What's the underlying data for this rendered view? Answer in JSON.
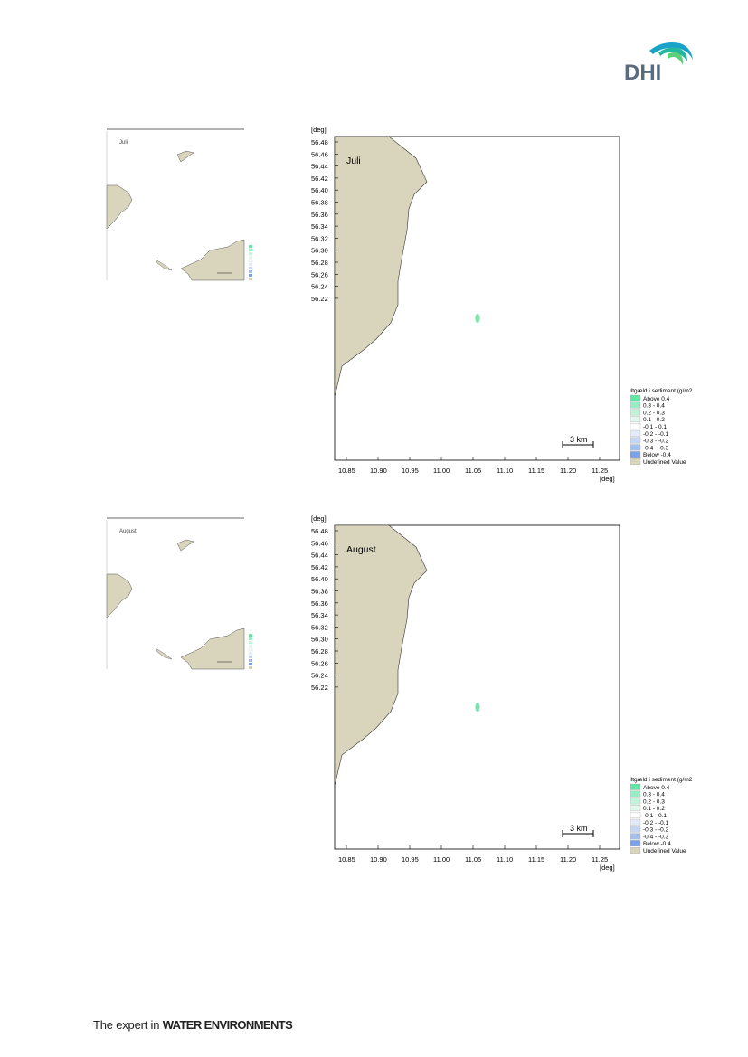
{
  "brand": {
    "logo_text": "DHI",
    "tagline_prefix": "The expert in ",
    "tagline_bold": "WATER ENVIRONMENTS"
  },
  "colors": {
    "land": "#d9d5bd",
    "water": "#ffffff",
    "spot": "#7fe0b0",
    "frame": "#000000"
  },
  "axis": {
    "unit": "[deg]",
    "y_ticks": [
      "56.48",
      "56.46",
      "56.44",
      "56.42",
      "56.40",
      "56.38",
      "56.36",
      "56.34",
      "56.32",
      "56.30",
      "56.28",
      "56.26",
      "56.24",
      "56.22"
    ],
    "x_ticks": [
      "10.85",
      "10.90",
      "10.95",
      "11.00",
      "11.05",
      "11.10",
      "11.15",
      "11.20",
      "11.25"
    ]
  },
  "scale_bar": "3 km",
  "legend": {
    "title": "Iltgæld i sediment (g/m2",
    "items": [
      {
        "label": "Above  0.4",
        "color": "#66e6a6"
      },
      {
        "label": "0.3 -  0.4",
        "color": "#99edc2"
      },
      {
        "label": "0.2 -  0.3",
        "color": "#c2f4d9"
      },
      {
        "label": "0.1 -  0.2",
        "color": "#e2f8ec"
      },
      {
        "label": "-0.1 -  0.1",
        "color": "#ffffff"
      },
      {
        "label": "-0.2 - -0.1",
        "color": "#e3ebf8"
      },
      {
        "label": "-0.3 - -0.2",
        "color": "#c6d6f2"
      },
      {
        "label": "-0.4 - -0.3",
        "color": "#a6c0ee"
      },
      {
        "label": "Below -0.4",
        "color": "#7aa2e8"
      },
      {
        "label": "Undefined Value",
        "color": "#d9d5bd"
      }
    ]
  },
  "panels": [
    {
      "month": "Juli"
    },
    {
      "month": "August"
    }
  ]
}
